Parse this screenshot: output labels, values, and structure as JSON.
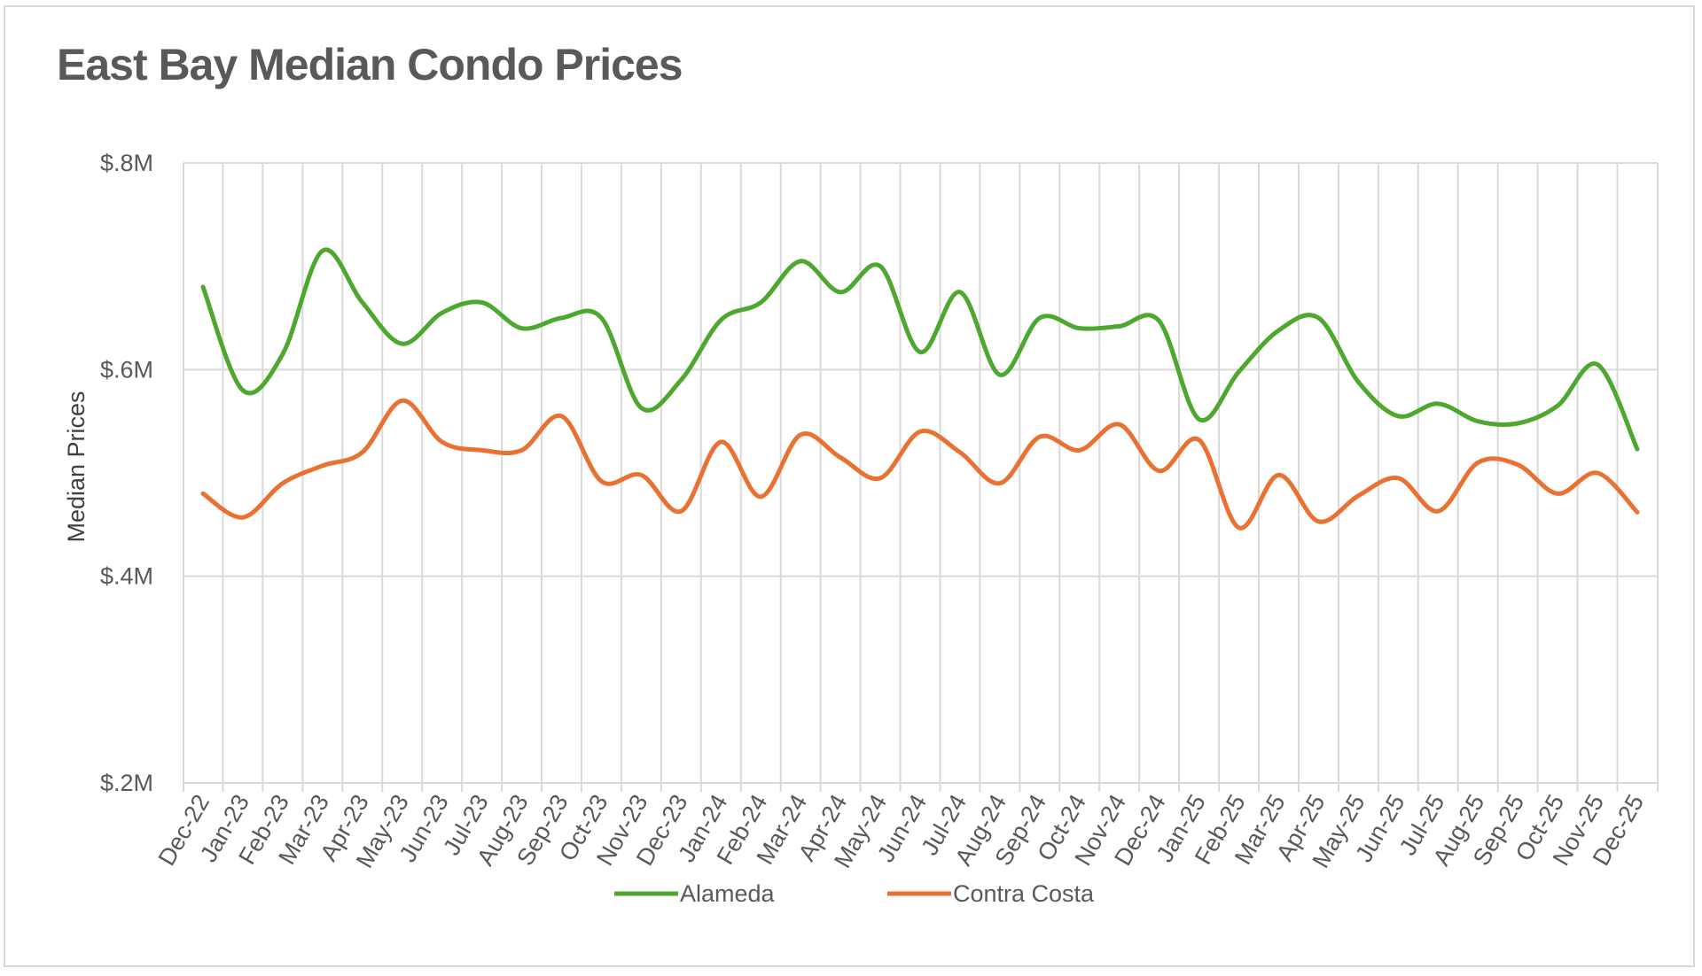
{
  "chart_data": {
    "type": "line",
    "title": "East Bay Median Condo Prices",
    "ylabel": "Median Prices",
    "xlabel": "",
    "ylim": [
      0.2,
      0.8
    ],
    "yticks": [
      {
        "value": 0.2,
        "label": "$.2M"
      },
      {
        "value": 0.4,
        "label": "$.4M"
      },
      {
        "value": 0.6,
        "label": "$.6M"
      },
      {
        "value": 0.8,
        "label": "$.8M"
      }
    ],
    "grid": true,
    "legend_position": "bottom",
    "categories": [
      "Dec-22",
      "Jan-23",
      "Feb-23",
      "Mar-23",
      "Apr-23",
      "May-23",
      "Jun-23",
      "Jul-23",
      "Aug-23",
      "Sep-23",
      "Oct-23",
      "Nov-23",
      "Dec-23",
      "Jan-24",
      "Feb-24",
      "Mar-24",
      "Apr-24",
      "May-24",
      "Jun-24",
      "Jul-24",
      "Aug-24",
      "Sep-24",
      "Oct-24",
      "Nov-24",
      "Dec-24",
      "Jan-25",
      "Feb-25",
      "Mar-25",
      "Apr-25",
      "May-25",
      "Jun-25",
      "Jul-25",
      "Aug-25",
      "Sep-25",
      "Oct-25",
      "Nov-25",
      "Dec-25"
    ],
    "series": [
      {
        "name": "Alameda",
        "color": "#4ea72e",
        "values": [
          0.68,
          0.58,
          0.615,
          0.715,
          0.665,
          0.625,
          0.655,
          0.665,
          0.64,
          0.65,
          0.65,
          0.563,
          0.59,
          0.648,
          0.665,
          0.705,
          0.675,
          0.7,
          0.617,
          0.675,
          0.595,
          0.65,
          0.64,
          0.642,
          0.647,
          0.552,
          0.598,
          0.638,
          0.65,
          0.588,
          0.555,
          0.567,
          0.55,
          0.548,
          0.565,
          0.605,
          0.523
        ]
      },
      {
        "name": "Contra Costa",
        "color": "#e97132",
        "values": [
          0.48,
          0.457,
          0.49,
          0.507,
          0.52,
          0.57,
          0.53,
          0.522,
          0.522,
          0.555,
          0.492,
          0.498,
          0.463,
          0.53,
          0.477,
          0.537,
          0.515,
          0.495,
          0.54,
          0.52,
          0.49,
          0.535,
          0.522,
          0.547,
          0.502,
          0.532,
          0.447,
          0.498,
          0.453,
          0.478,
          0.495,
          0.463,
          0.51,
          0.508,
          0.48,
          0.5,
          0.462
        ]
      }
    ]
  }
}
